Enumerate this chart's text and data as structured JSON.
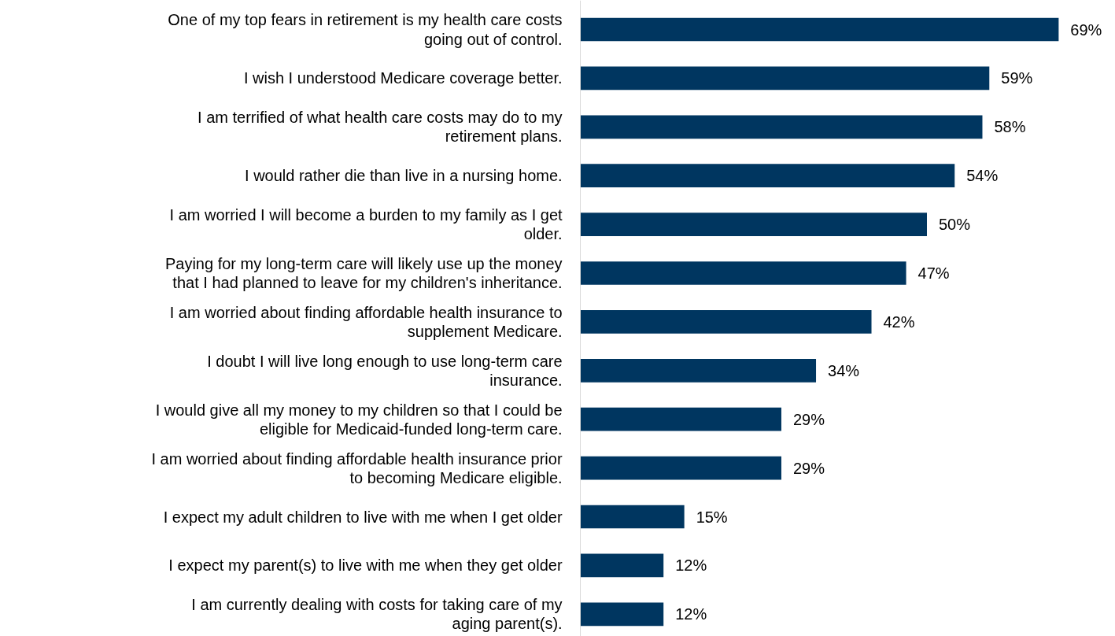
{
  "chart_data": {
    "type": "bar",
    "orientation": "horizontal",
    "categories": [
      "One of my top fears in retirement is my health care costs going out of control.",
      "I wish I understood Medicare coverage better.",
      "I am terrified of what health care costs may do to my retirement plans.",
      "I would rather die than live in a nursing home.",
      "I am worried I will become a burden to my family as I get older.",
      "Paying for my long-term care will likely use up the money that I had planned to leave for my children's inheritance.",
      "I am worried about finding affordable health insurance to supplement Medicare.",
      "I doubt I will live long enough to use long-term care insurance.",
      "I would give all my money to my children so that I could be eligible for Medicaid-funded long-term care.",
      "I am worried about finding affordable health insurance prior to becoming Medicare eligible.",
      "I expect my adult children to live with me when I get older",
      "I expect my parent(s) to live with me when they get older",
      "I am currently dealing with costs for taking care of my aging parent(s)."
    ],
    "values": [
      69,
      59,
      58,
      54,
      50,
      47,
      42,
      34,
      29,
      29,
      15,
      12,
      12
    ],
    "value_labels": [
      "69%",
      "59%",
      "58%",
      "54%",
      "50%",
      "47%",
      "42%",
      "34%",
      "29%",
      "29%",
      "15%",
      "12%",
      "12%"
    ],
    "color": "#003660",
    "grid": false
  }
}
